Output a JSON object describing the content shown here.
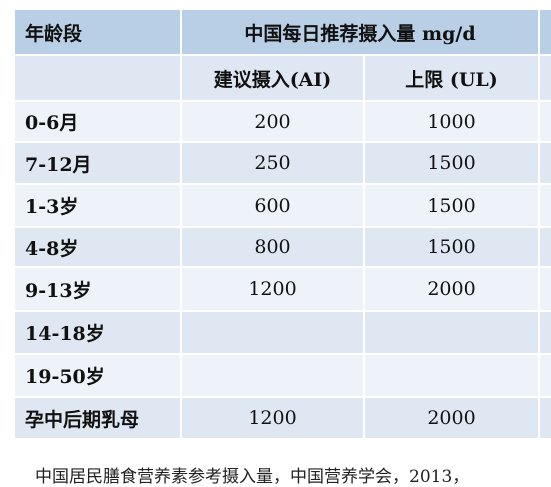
{
  "table": {
    "header": [
      [
        "年龄段",
        "中国每日推荐摄入量 mg/d"
      ],
      [
        null,
        "建议摄入(AI)",
        "上限 (UL)"
      ]
    ],
    "rows": [
      [
        "0-6月",
        "200",
        "1000"
      ],
      [
        "7-12月",
        "250",
        "1500"
      ],
      [
        "1-3岁",
        "600",
        "1500"
      ],
      [
        "4-8岁",
        "800",
        "1500"
      ],
      [
        "9-13岁",
        "1200",
        "2000"
      ],
      [
        "14-18岁",
        null,
        null
      ],
      [
        "19-50岁",
        null,
        null
      ],
      [
        "孕中后期乳母",
        "1200",
        "2000"
      ]
    ]
  },
  "footnote": "中国居民膳食营养素参考摄入量，中国营养学会，2013，"
}
